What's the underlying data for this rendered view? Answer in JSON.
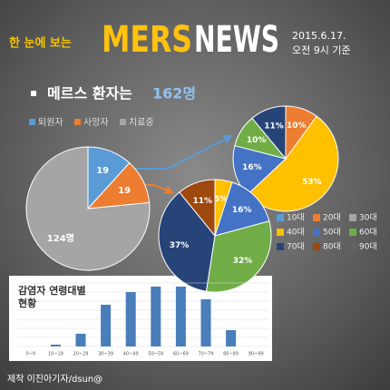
{
  "header": {
    "tagline": "한 눈에 보는",
    "title_mers": "MERS",
    "title_news": "NEWS",
    "date": "2015.6.17.",
    "time": "오전 9시 기준"
  },
  "headline": {
    "text": "메르스 환자는",
    "count": "162명"
  },
  "legend": {
    "categories": [
      "10대",
      "20대",
      "30대",
      "40대",
      "50대",
      "60대",
      "70대",
      "80대",
      "90대"
    ],
    "colors": [
      "#5b9bd5",
      "#ed7d31",
      "#a5a5a5",
      "#ffc000",
      "#4472c4",
      "#70ad47",
      "#264478",
      "#9e480e",
      "#636363"
    ]
  },
  "chart_data": [
    {
      "type": "pie",
      "categories": [
        "퇴원자",
        "사망자",
        "치료중"
      ],
      "values": [
        19,
        19,
        124
      ],
      "value_labels": [
        "19",
        "19",
        "124명"
      ],
      "colors": [
        "#5b9bd5",
        "#ed7d31",
        "#a5a5a5"
      ]
    },
    {
      "type": "pie",
      "categories": [
        "20대",
        "40대",
        "50대",
        "60대",
        "70대"
      ],
      "values": [
        10,
        53,
        16,
        10,
        11
      ],
      "value_labels": [
        "10%",
        "53%",
        "16%",
        "10%",
        "11%"
      ],
      "colors": [
        "#ed7d31",
        "#ffc000",
        "#4472c4",
        "#70ad47",
        "#264478"
      ]
    },
    {
      "type": "pie",
      "categories": [
        "40대",
        "50대",
        "60대",
        "70대",
        "80대"
      ],
      "values": [
        5,
        16,
        32,
        37,
        11
      ],
      "value_labels": [
        "5%",
        "16%",
        "32%",
        "37%",
        "11%"
      ],
      "colors": [
        "#ffc000",
        "#4472c4",
        "#70ad47",
        "#264478",
        "#9e480e"
      ]
    },
    {
      "type": "bar",
      "title": "감염자 연령대별 현황",
      "categories": [
        "0~9",
        "10~19",
        "20~29",
        "30~39",
        "40~49",
        "50~59",
        "60~69",
        "70~79",
        "80~89",
        "90~99"
      ],
      "values": [
        0,
        1,
        7,
        23,
        30,
        33,
        33,
        26,
        9,
        0
      ],
      "color": "#4a7ebb",
      "ylim": [
        0,
        35
      ],
      "yticks": [
        0,
        5,
        10,
        15,
        20,
        25,
        30,
        35
      ],
      "grid": true
    }
  ],
  "footer": "제작 이진아기자/dsun@"
}
